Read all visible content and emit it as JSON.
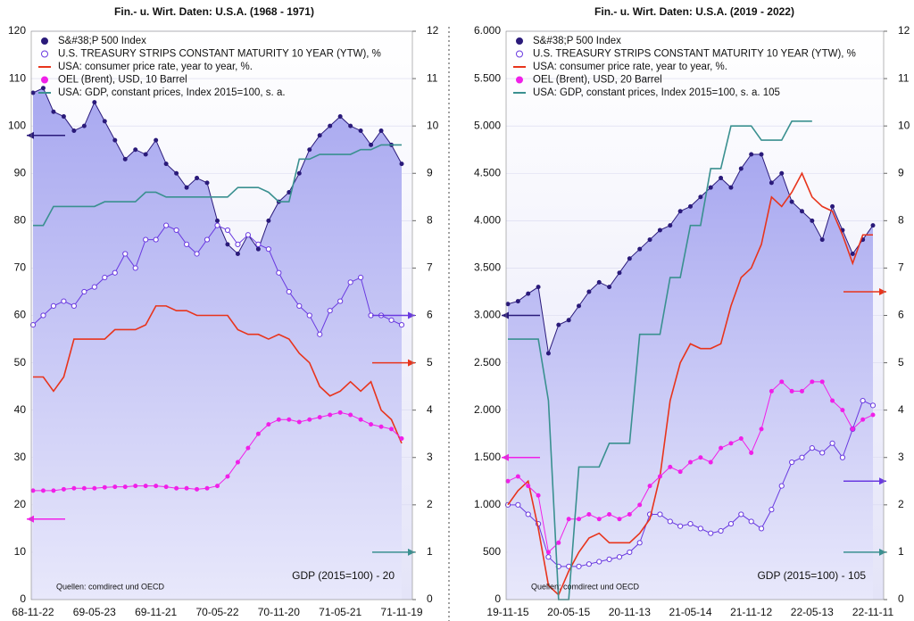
{
  "chart_data": [
    {
      "type": "line",
      "title": "Fin.- u. Wirt. Daten: U.S.A. (1968 - 1971)",
      "categories": [
        "68-11-22",
        null,
        null,
        null,
        null,
        null,
        "69-05-23",
        null,
        null,
        null,
        null,
        null,
        "69-11-21",
        null,
        null,
        null,
        null,
        null,
        "70-05-22",
        null,
        null,
        null,
        null,
        null,
        "70-11-20",
        null,
        null,
        null,
        null,
        null,
        "71-05-21",
        null,
        null,
        null,
        null,
        null,
        "71-11-19"
      ],
      "ylim": [
        0,
        120
      ],
      "yticks": [
        0,
        10,
        20,
        30,
        40,
        50,
        60,
        70,
        80,
        90,
        100,
        110,
        120
      ],
      "y2lim": [
        0,
        12
      ],
      "y2ticks": [
        0,
        1,
        2,
        3,
        4,
        5,
        6,
        7,
        8,
        9,
        10,
        11,
        12
      ],
      "series": [
        {
          "name": "S&#38;P 500 Index",
          "color": "#2a1a7a",
          "style": "area",
          "axis": "y",
          "values": [
            107,
            108,
            103,
            102,
            99,
            100,
            105,
            101,
            97,
            93,
            95,
            94,
            97,
            92,
            90,
            87,
            89,
            88,
            80,
            75,
            73,
            77,
            74,
            80,
            84,
            86,
            90,
            95,
            98,
            100,
            102,
            100,
            99,
            96,
            99,
            96,
            92
          ]
        },
        {
          "name": "U.S. TREASURY STRIPS CONSTANT MATURITY 10 YEAR (YTW), %",
          "color": "#6a3ae0",
          "style": "open",
          "axis": "y2",
          "values": [
            5.8,
            6.0,
            6.2,
            6.3,
            6.2,
            6.5,
            6.6,
            6.8,
            6.9,
            7.3,
            7.0,
            7.6,
            7.6,
            7.9,
            7.8,
            7.5,
            7.3,
            7.6,
            7.9,
            7.8,
            7.5,
            7.7,
            7.5,
            7.4,
            6.9,
            6.5,
            6.2,
            6.0,
            5.6,
            6.1,
            6.3,
            6.7,
            6.8,
            6.0,
            6.0,
            5.9,
            5.8
          ]
        },
        {
          "name": "USA: consumer price rate, year to year, %.",
          "color": "#e8341c",
          "style": "line",
          "axis": "y2",
          "values": [
            4.7,
            4.7,
            4.4,
            4.7,
            5.5,
            5.5,
            5.5,
            5.5,
            5.7,
            5.7,
            5.7,
            5.8,
            6.2,
            6.2,
            6.1,
            6.1,
            6.0,
            6.0,
            6.0,
            6.0,
            5.7,
            5.6,
            5.6,
            5.5,
            5.6,
            5.5,
            5.2,
            5.0,
            4.5,
            4.3,
            4.4,
            4.6,
            4.4,
            4.6,
            4.0,
            3.8,
            3.3
          ]
        },
        {
          "name": "OEL (Brent), USD, 10 Barrel",
          "color": "#f020e8",
          "style": "marker",
          "axis": "y",
          "values": [
            23,
            23,
            23,
            23.3,
            23.5,
            23.5,
            23.5,
            23.7,
            23.8,
            23.8,
            24,
            24,
            24,
            23.8,
            23.5,
            23.5,
            23.3,
            23.5,
            24,
            26,
            29,
            32,
            35,
            37,
            38,
            38,
            37.5,
            38,
            38.5,
            39,
            39.5,
            39,
            38,
            37,
            36.5,
            36,
            34
          ]
        },
        {
          "name": "USA: GDP, constant prices, Index 2015=100, s. a.",
          "color": "#3a9090",
          "style": "line",
          "axis": "y2",
          "values": [
            7.9,
            7.9,
            8.3,
            8.3,
            8.3,
            8.3,
            8.3,
            8.4,
            8.4,
            8.4,
            8.4,
            8.6,
            8.6,
            8.5,
            8.5,
            8.5,
            8.5,
            8.5,
            8.5,
            8.5,
            8.7,
            8.7,
            8.7,
            8.6,
            8.4,
            8.4,
            9.3,
            9.3,
            9.4,
            9.4,
            9.4,
            9.4,
            9.5,
            9.5,
            9.6,
            9.6,
            9.6
          ]
        }
      ],
      "markers": [
        {
          "value": 98,
          "axis": "y",
          "side": "left",
          "color": "#2a1a7a"
        },
        {
          "value": 17,
          "axis": "y",
          "side": "left",
          "color": "#f020e8"
        },
        {
          "value": 6,
          "axis": "y2",
          "side": "right",
          "color": "#6a3ae0"
        },
        {
          "value": 5,
          "axis": "y2",
          "side": "right",
          "color": "#e8341c"
        },
        {
          "value": 1,
          "axis": "y2",
          "side": "right",
          "color": "#3a9090"
        }
      ],
      "annotations": [
        "GDP (2015=100) - 20",
        "Quellen: comdirect und OECD"
      ]
    },
    {
      "type": "line",
      "title": "Fin.- u. Wirt. Daten: U.S.A. (2019 - 2022)",
      "categories": [
        "19-11-15",
        null,
        null,
        null,
        null,
        null,
        "20-05-15",
        null,
        null,
        null,
        null,
        null,
        "20-11-13",
        null,
        null,
        null,
        null,
        null,
        "21-05-14",
        null,
        null,
        null,
        null,
        null,
        "21-11-12",
        null,
        null,
        null,
        null,
        null,
        "22-05-13",
        null,
        null,
        null,
        null,
        null,
        "22-11-11"
      ],
      "ylim": [
        0,
        6000
      ],
      "yticks": [
        0,
        500,
        {
          "value": 1000,
          "label": "1.000"
        },
        {
          "value": 1500,
          "label": "1.500"
        },
        {
          "value": 2000,
          "label": "2.000"
        },
        {
          "value": 2500,
          "label": "2.500"
        },
        {
          "value": 3000,
          "label": "3.000"
        },
        {
          "value": 3500,
          "label": "3.500"
        },
        {
          "value": 4000,
          "label": "4.000"
        },
        {
          "value": 4500,
          "label": "4.500"
        },
        {
          "value": 5000,
          "label": "5.000"
        },
        {
          "value": 5500,
          "label": "5.500"
        },
        {
          "value": 6000,
          "label": "6.000"
        }
      ],
      "y2lim": [
        0,
        12
      ],
      "y2ticks": [
        0,
        1,
        2,
        3,
        4,
        5,
        6,
        7,
        8,
        9,
        10,
        11,
        12
      ],
      "series": [
        {
          "name": "S&#38;P 500 Index",
          "color": "#2a1a7a",
          "style": "area",
          "axis": "y",
          "values": [
            3120,
            3150,
            3230,
            3300,
            2600,
            2900,
            2950,
            3100,
            3250,
            3350,
            3300,
            3450,
            3600,
            3700,
            3800,
            3900,
            3950,
            4100,
            4150,
            4250,
            4350,
            4450,
            4350,
            4550,
            4700,
            4700,
            4400,
            4500,
            4200,
            4100,
            4000,
            3800,
            4150,
            3900,
            3650,
            3800,
            3950
          ]
        },
        {
          "name": "U.S. TREASURY STRIPS CONSTANT MATURITY 10 YEAR (YTW), %",
          "color": "#6a3ae0",
          "style": "open",
          "axis": "y2",
          "values": [
            2.0,
            2.0,
            1.8,
            1.6,
            0.9,
            0.7,
            0.7,
            0.7,
            0.75,
            0.8,
            0.85,
            0.9,
            1.0,
            1.2,
            1.8,
            1.8,
            1.65,
            1.55,
            1.6,
            1.5,
            1.4,
            1.45,
            1.6,
            1.8,
            1.65,
            1.5,
            1.9,
            2.4,
            2.9,
            3.0,
            3.2,
            3.1,
            3.3,
            3.0,
            3.6,
            4.2,
            4.1
          ]
        },
        {
          "name": "USA: consumer price rate, year to year, %.",
          "color": "#e8341c",
          "style": "line",
          "axis": "y2",
          "values": [
            2.0,
            2.3,
            2.5,
            1.5,
            0.3,
            0.1,
            0.6,
            1.0,
            1.3,
            1.4,
            1.2,
            1.2,
            1.2,
            1.4,
            1.7,
            2.6,
            4.2,
            5.0,
            5.4,
            5.3,
            5.3,
            5.4,
            6.2,
            6.8,
            7.0,
            7.5,
            8.5,
            8.3,
            8.6,
            9.0,
            8.5,
            8.3,
            8.2,
            7.7,
            7.1,
            7.7,
            7.7
          ]
        },
        {
          "name": "OEL (Brent), USD, 20 Barrel",
          "color": "#f020e8",
          "style": "marker",
          "axis": "y",
          "values": [
            1250,
            1300,
            1200,
            1100,
            500,
            600,
            850,
            850,
            900,
            850,
            900,
            850,
            900,
            1000,
            1200,
            1300,
            1400,
            1350,
            1450,
            1500,
            1450,
            1600,
            1650,
            1700,
            1550,
            1800,
            2200,
            2300,
            2200,
            2200,
            2300,
            2300,
            2100,
            2000,
            1800,
            1900,
            1950
          ]
        },
        {
          "name": "USA: GDP, constant prices, Index 2015=100, s. a. 105",
          "color": "#3a9090",
          "style": "line",
          "axis": "y2",
          "values": [
            5.5,
            5.5,
            5.5,
            5.5,
            4.2,
            0,
            0,
            2.8,
            2.8,
            2.8,
            3.3,
            3.3,
            3.3,
            5.6,
            5.6,
            5.6,
            6.8,
            6.8,
            7.9,
            7.9,
            9.1,
            9.1,
            10.0,
            10.0,
            10.0,
            9.7,
            9.7,
            9.7,
            10.1,
            10.1,
            10.1,
            null,
            null,
            null,
            null,
            null,
            null
          ]
        }
      ],
      "markers": [
        {
          "value": 3000,
          "axis": "y",
          "side": "left",
          "color": "#2a1a7a"
        },
        {
          "value": 1500,
          "axis": "y",
          "side": "left",
          "color": "#f020e8"
        },
        {
          "value": 6.5,
          "axis": "y2",
          "side": "right",
          "color": "#e8341c"
        },
        {
          "value": 2.5,
          "axis": "y2",
          "side": "right",
          "color": "#6a3ae0"
        },
        {
          "value": 1,
          "axis": "y2",
          "side": "right",
          "color": "#3a9090"
        }
      ],
      "annotations": [
        "GDP (2015=100) - 105",
        "Quellen: comdirect und OECD"
      ]
    }
  ]
}
